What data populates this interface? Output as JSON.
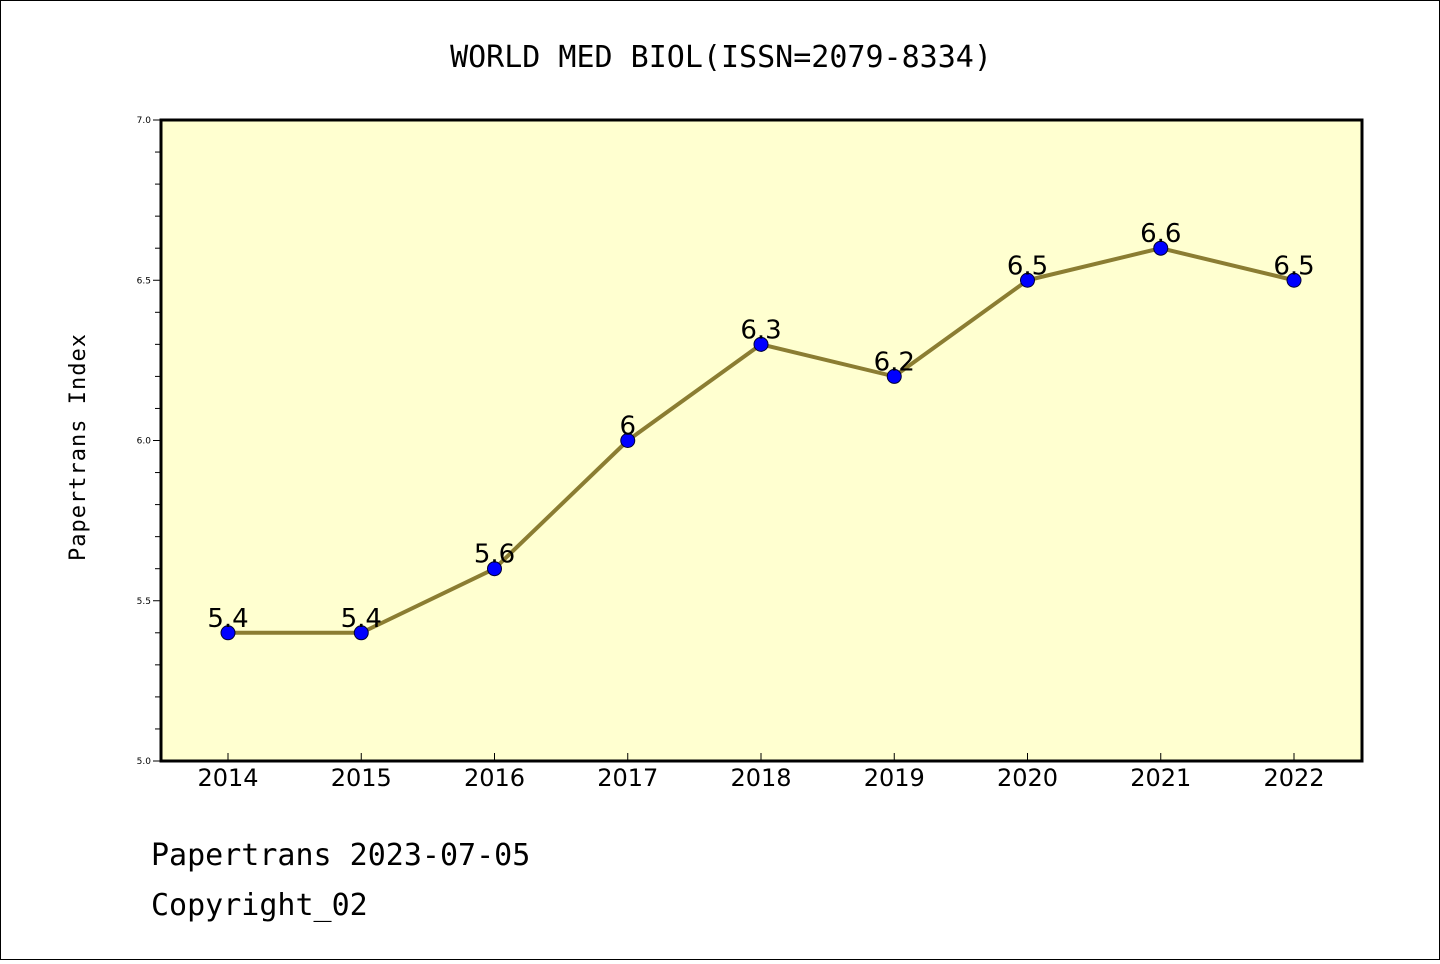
{
  "chart_data": {
    "type": "line",
    "title": "WORLD MED BIOL(ISSN=2079-8334)",
    "xlabel": "",
    "ylabel": "Papertrans Index",
    "categories": [
      "2014",
      "2015",
      "2016",
      "2017",
      "2018",
      "2019",
      "2020",
      "2021",
      "2022"
    ],
    "values": [
      5.4,
      5.4,
      5.6,
      6.0,
      6.3,
      6.2,
      6.5,
      6.6,
      6.5
    ],
    "data_labels": [
      "5.4",
      "5.4",
      "5.6",
      "6",
      "6.3",
      "6.2",
      "6.5",
      "6.6",
      "6.5"
    ],
    "ylim": [
      5.0,
      7.0
    ],
    "yticks": [
      "5.0",
      "5.5",
      "6.0",
      "6.5",
      "7.0"
    ],
    "grid": false,
    "colors": {
      "plot_background": "#ffffd0",
      "line": "#8b7d32",
      "marker": "#0000ff"
    }
  },
  "footer": {
    "line1": "Papertrans 2023-07-05",
    "line2": "Copyright_02"
  }
}
